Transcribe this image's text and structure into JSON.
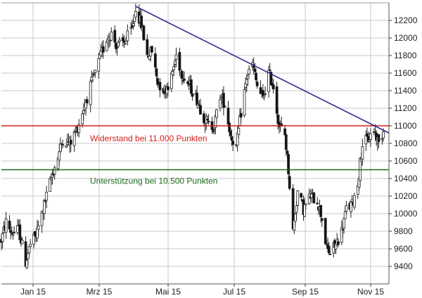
{
  "chart_data": {
    "type": "candlestick",
    "title": "",
    "xlabel": "",
    "ylabel": "",
    "x_ticks": [
      "Jan 15",
      "Mrz 15",
      "Mai 15",
      "Jul 15",
      "Sep 15",
      "Nov 15"
    ],
    "y_ticks": [
      9400,
      9600,
      9800,
      10000,
      10200,
      10400,
      10600,
      10800,
      11000,
      11200,
      11400,
      11600,
      11800,
      12000,
      12200
    ],
    "ylim": [
      9200,
      12400
    ],
    "x_range": [
      "2014-12-15",
      "2015-11-10"
    ],
    "y_axis_position": "right",
    "grid": true,
    "grid_color": "#c9c9c9",
    "candle_color_up": "#ffffff",
    "candle_color_down": "#111111",
    "horizontal_lines": [
      {
        "value": 11000,
        "label": "Widerstand bei 11.000 Punkten",
        "color": "#d0201a"
      },
      {
        "value": 10500,
        "label": "Unterstützung bei 10.500 Punkten",
        "color": "#1e6b1e"
      }
    ],
    "trendline": {
      "color": "#2a2a8c",
      "from": {
        "date": "2015-04-10",
        "value": 12360
      },
      "to": {
        "date": "2015-11-10",
        "value": 10950
      }
    },
    "path_points": [
      [
        "2014-12-15",
        9700
      ],
      [
        "2014-12-19",
        9900
      ],
      [
        "2014-12-24",
        9780
      ],
      [
        "2014-12-30",
        9820
      ],
      [
        "2015-01-05",
        9450
      ],
      [
        "2015-01-09",
        9650
      ],
      [
        "2015-01-14",
        9750
      ],
      [
        "2015-01-19",
        10000
      ],
      [
        "2015-01-23",
        10200
      ],
      [
        "2015-01-28",
        10450
      ],
      [
        "2015-02-02",
        10650
      ],
      [
        "2015-02-06",
        10850
      ],
      [
        "2015-02-12",
        10800
      ],
      [
        "2015-02-18",
        10950
      ],
      [
        "2015-02-24",
        11200
      ],
      [
        "2015-03-02",
        11450
      ],
      [
        "2015-03-06",
        11600
      ],
      [
        "2015-03-11",
        11800
      ],
      [
        "2015-03-16",
        12000
      ],
      [
        "2015-03-20",
        12050
      ],
      [
        "2015-03-25",
        11900
      ],
      [
        "2015-03-31",
        11950
      ],
      [
        "2015-04-07",
        12100
      ],
      [
        "2015-04-10",
        12350
      ],
      [
        "2015-04-15",
        12150
      ],
      [
        "2015-04-20",
        11800
      ],
      [
        "2015-04-24",
        11850
      ],
      [
        "2015-04-29",
        11500
      ],
      [
        "2015-05-05",
        11400
      ],
      [
        "2015-05-11",
        11550
      ],
      [
        "2015-05-15",
        11800
      ],
      [
        "2015-05-20",
        11600
      ],
      [
        "2015-05-27",
        11450
      ],
      [
        "2015-06-02",
        11300
      ],
      [
        "2015-06-08",
        11100
      ],
      [
        "2015-06-12",
        11000
      ],
      [
        "2015-06-17",
        11000
      ],
      [
        "2015-06-22",
        11350
      ],
      [
        "2015-06-26",
        11250
      ],
      [
        "2015-07-01",
        10900
      ],
      [
        "2015-07-06",
        10750
      ],
      [
        "2015-07-10",
        11150
      ],
      [
        "2015-07-15",
        11550
      ],
      [
        "2015-07-20",
        11700
      ],
      [
        "2015-07-24",
        11450
      ],
      [
        "2015-07-29",
        11300
      ],
      [
        "2015-08-03",
        11600
      ],
      [
        "2015-08-07",
        11450
      ],
      [
        "2015-08-12",
        11000
      ],
      [
        "2015-08-17",
        10900
      ],
      [
        "2015-08-20",
        10500
      ],
      [
        "2015-08-24",
        9800
      ],
      [
        "2015-08-28",
        10250
      ],
      [
        "2015-09-02",
        10050
      ],
      [
        "2015-09-08",
        10200
      ],
      [
        "2015-09-14",
        10150
      ],
      [
        "2015-09-18",
        9950
      ],
      [
        "2015-09-22",
        9600
      ],
      [
        "2015-09-25",
        9550
      ],
      [
        "2015-09-30",
        9650
      ],
      [
        "2015-10-05",
        9800
      ],
      [
        "2015-10-09",
        10050
      ],
      [
        "2015-10-14",
        10100
      ],
      [
        "2015-10-19",
        10350
      ],
      [
        "2015-10-23",
        10800
      ],
      [
        "2015-10-28",
        10850
      ],
      [
        "2015-11-02",
        10950
      ],
      [
        "2015-11-06",
        10800
      ],
      [
        "2015-11-10",
        10950
      ]
    ]
  }
}
